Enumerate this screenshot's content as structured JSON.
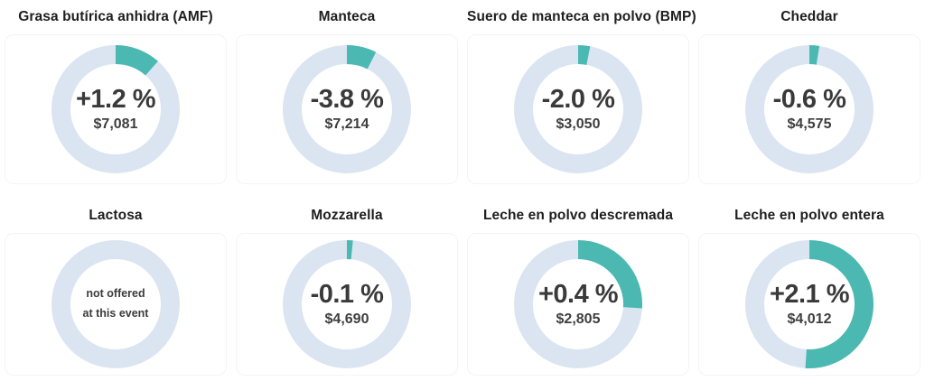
{
  "colors": {
    "arc_teal": "#4bb9b1",
    "ring_base": "#dbe5f2",
    "title_text": "#1e1e1e",
    "value_text": "#3a3a3a"
  },
  "chart_data": [
    {
      "type": "pie",
      "title": "Grasa butírica anhidra (AMF)",
      "center_label": "+1.2 %",
      "sub_label": "$7,081",
      "change_percent": 1.2,
      "price_usd": 7081,
      "arc_fraction": 0.115
    },
    {
      "type": "pie",
      "title": "Manteca",
      "center_label": "-3.8 %",
      "sub_label": "$7,214",
      "change_percent": -3.8,
      "price_usd": 7214,
      "arc_fraction": 0.075
    },
    {
      "type": "pie",
      "title": "Suero de manteca en polvo (BMP)",
      "center_label": "-2.0 %",
      "sub_label": "$3,050",
      "change_percent": -2.0,
      "price_usd": 3050,
      "arc_fraction": 0.03
    },
    {
      "type": "pie",
      "title": "Cheddar",
      "center_label": "-0.6 %",
      "sub_label": "$4,575",
      "change_percent": -0.6,
      "price_usd": 4575,
      "arc_fraction": 0.025
    },
    {
      "type": "pie",
      "title": "Lactosa",
      "center_label": null,
      "sub_label": null,
      "change_percent": null,
      "price_usd": null,
      "arc_fraction": 0,
      "note_line1": "not offered",
      "note_line2": "at this event"
    },
    {
      "type": "pie",
      "title": "Mozzarella",
      "center_label": "-0.1 %",
      "sub_label": "$4,690",
      "change_percent": -0.1,
      "price_usd": 4690,
      "arc_fraction": 0.015
    },
    {
      "type": "pie",
      "title": "Leche en polvo descremada",
      "center_label": "+0.4 %",
      "sub_label": "$2,805",
      "change_percent": 0.4,
      "price_usd": 2805,
      "arc_fraction": 0.26
    },
    {
      "type": "pie",
      "title": "Leche en polvo entera",
      "center_label": "+2.1 %",
      "sub_label": "$4,012",
      "change_percent": 2.1,
      "price_usd": 4012,
      "arc_fraction": 0.51
    }
  ]
}
